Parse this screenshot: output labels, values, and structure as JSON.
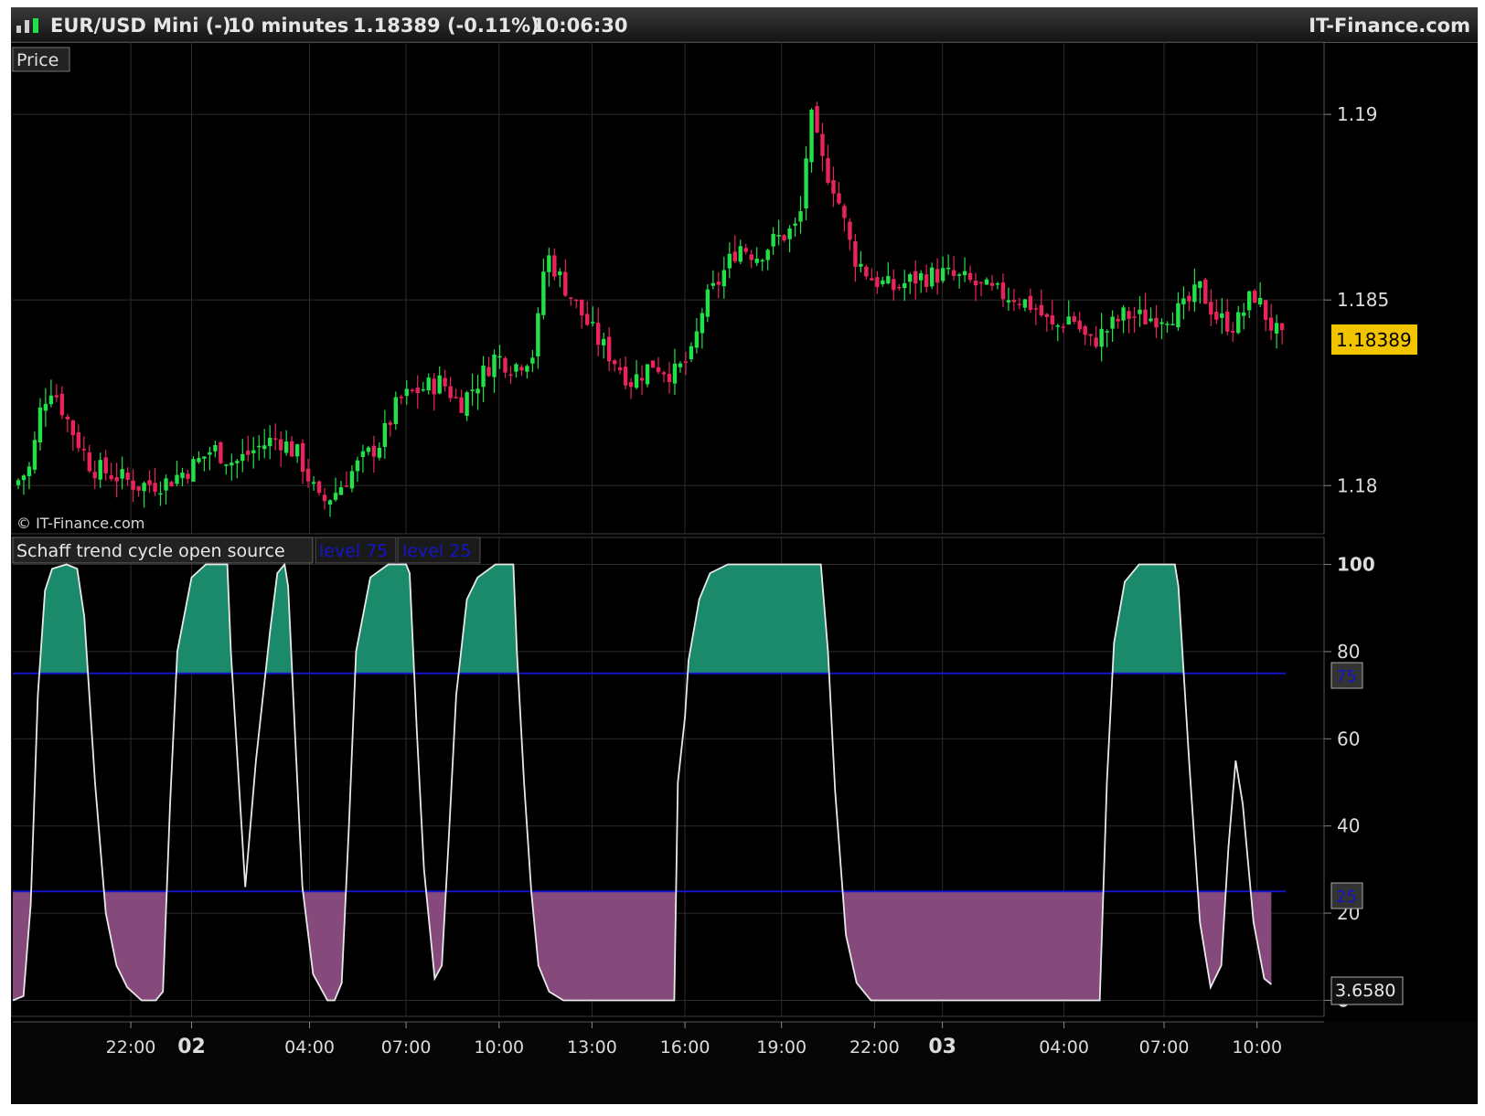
{
  "header": {
    "symbol": "EUR/USD Mini (-)",
    "timeframe": "10 minutes",
    "quote": "1.18389 (-0.11%)",
    "time": "10:06:30",
    "brand": "IT-Finance.com"
  },
  "price_panel": {
    "label": "Price",
    "watermark": "© IT-Finance.com",
    "last_price_badge": "1.18389"
  },
  "indicator_panel": {
    "label": "Schaff trend cycle open source",
    "level_tags": [
      "level 75",
      "level 25"
    ],
    "value_badge": "3.6580",
    "level75_badge": "75",
    "level25_badge": "25"
  },
  "colors": {
    "background": "#000000",
    "bull": "#22e04a",
    "bear": "#e8245a",
    "fill_high": "#1b8a6b",
    "fill_low": "#86497c",
    "level_line": "#1515c8",
    "stc_line": "#e8e8e8",
    "badge": "#f2c400"
  },
  "chart_data": [
    {
      "type": "candlestick",
      "title": "EUR/USD Mini (-) 10 minutes",
      "ylabel": "",
      "ylim": [
        1.1788,
        1.1918
      ],
      "y_ticks": [
        1.18,
        1.185,
        1.19
      ],
      "y_tick_labels": [
        "1.18",
        "1.185",
        "1.19"
      ],
      "last_price": 1.18389,
      "x_ticks": [
        "22:00",
        "02",
        "04:00",
        "07:00",
        "10:00",
        "13:00",
        "16:00",
        "19:00",
        "22:00",
        "03",
        "04:00",
        "07:00",
        "10:00"
      ],
      "close_path": [
        [
          0,
          1.18
        ],
        [
          0.5,
          1.1805
        ],
        [
          0.8,
          1.1822
        ],
        [
          1.1,
          1.1827
        ],
        [
          1.6,
          1.1816
        ],
        [
          2.2,
          1.1805
        ],
        [
          2.8,
          1.1803
        ],
        [
          3.5,
          1.18
        ],
        [
          4.3,
          1.1801
        ],
        [
          5.0,
          1.1805
        ],
        [
          5.6,
          1.181
        ],
        [
          6.2,
          1.1806
        ],
        [
          6.8,
          1.181
        ],
        [
          7.4,
          1.1813
        ],
        [
          8.0,
          1.1808
        ],
        [
          8.6,
          1.1795
        ],
        [
          9.0,
          1.1798
        ],
        [
          9.6,
          1.1805
        ],
        [
          10.3,
          1.1812
        ],
        [
          10.8,
          1.1823
        ],
        [
          11.4,
          1.1826
        ],
        [
          12.0,
          1.1828
        ],
        [
          12.5,
          1.1822
        ],
        [
          13.0,
          1.1828
        ],
        [
          13.5,
          1.1835
        ],
        [
          14.0,
          1.1832
        ],
        [
          14.6,
          1.1836
        ],
        [
          14.9,
          1.1863
        ],
        [
          15.3,
          1.1856
        ],
        [
          15.8,
          1.1848
        ],
        [
          16.3,
          1.184
        ],
        [
          16.8,
          1.1834
        ],
        [
          17.3,
          1.1828
        ],
        [
          17.9,
          1.1833
        ],
        [
          18.5,
          1.183
        ],
        [
          19.0,
          1.1835
        ],
        [
          19.3,
          1.1848
        ],
        [
          19.8,
          1.1856
        ],
        [
          20.3,
          1.1865
        ],
        [
          20.8,
          1.1862
        ],
        [
          21.3,
          1.1866
        ],
        [
          22.0,
          1.187
        ],
        [
          22.3,
          1.19
        ],
        [
          22.6,
          1.1888
        ],
        [
          23.0,
          1.188
        ],
        [
          23.5,
          1.1862
        ],
        [
          24.0,
          1.1856
        ],
        [
          24.6,
          1.1853
        ],
        [
          25.3,
          1.1856
        ],
        [
          26.0,
          1.1857
        ],
        [
          26.7,
          1.1855
        ],
        [
          27.4,
          1.1852
        ],
        [
          28.0,
          1.1851
        ],
        [
          28.6,
          1.1848
        ],
        [
          29.1,
          1.1842
        ],
        [
          29.6,
          1.1846
        ],
        [
          30.1,
          1.1838
        ],
        [
          30.6,
          1.1842
        ],
        [
          31.1,
          1.1846
        ],
        [
          31.7,
          1.1845
        ],
        [
          32.2,
          1.1846
        ],
        [
          32.7,
          1.1847
        ],
        [
          33.2,
          1.1853
        ],
        [
          33.7,
          1.1845
        ],
        [
          34.2,
          1.1843
        ],
        [
          34.7,
          1.1852
        ],
        [
          35.2,
          1.1843
        ],
        [
          35.5,
          1.1839
        ]
      ],
      "bull_color": "#22e04a",
      "bear_color": "#e8245a"
    },
    {
      "type": "area",
      "title": "Schaff trend cycle open source",
      "ylim": [
        -2,
        102
      ],
      "y_ticks": [
        0,
        20,
        40,
        60,
        80,
        100
      ],
      "y_tick_labels": [
        "0",
        "20",
        "40",
        "60",
        "80",
        "100"
      ],
      "levels": [
        {
          "name": "level 75",
          "value": 75
        },
        {
          "name": "level 25",
          "value": 25
        }
      ],
      "last_value": 3.658,
      "series": [
        {
          "name": "Schaff trend cycle open source",
          "points": [
            [
              0,
              0
            ],
            [
              0.3,
              1
            ],
            [
              0.5,
              22
            ],
            [
              0.7,
              70
            ],
            [
              0.9,
              94
            ],
            [
              1.1,
              99
            ],
            [
              1.5,
              100
            ],
            [
              1.8,
              99
            ],
            [
              2.0,
              88
            ],
            [
              2.3,
              50
            ],
            [
              2.6,
              20
            ],
            [
              2.9,
              8
            ],
            [
              3.2,
              3
            ],
            [
              3.6,
              0
            ],
            [
              4.0,
              0
            ],
            [
              4.2,
              2
            ],
            [
              4.4,
              45
            ],
            [
              4.6,
              80
            ],
            [
              5.0,
              97
            ],
            [
              5.4,
              100
            ],
            [
              6.0,
              100
            ],
            [
              6.1,
              80
            ],
            [
              6.5,
              26
            ],
            [
              6.8,
              55
            ],
            [
              7.2,
              85
            ],
            [
              7.4,
              98
            ],
            [
              7.6,
              100
            ],
            [
              7.7,
              95
            ],
            [
              7.9,
              60
            ],
            [
              8.1,
              26
            ],
            [
              8.4,
              6
            ],
            [
              8.8,
              0
            ],
            [
              9.0,
              0
            ],
            [
              9.2,
              4
            ],
            [
              9.4,
              40
            ],
            [
              9.6,
              80
            ],
            [
              10.0,
              97
            ],
            [
              10.5,
              100
            ],
            [
              11.0,
              100
            ],
            [
              11.1,
              98
            ],
            [
              11.3,
              62
            ],
            [
              11.5,
              30
            ],
            [
              11.8,
              5
            ],
            [
              12.0,
              8
            ],
            [
              12.2,
              38
            ],
            [
              12.4,
              70
            ],
            [
              12.7,
              92
            ],
            [
              13.0,
              97
            ],
            [
              13.5,
              100
            ],
            [
              14.0,
              100
            ],
            [
              14.1,
              80
            ],
            [
              14.3,
              50
            ],
            [
              14.5,
              25
            ],
            [
              14.7,
              8
            ],
            [
              15.0,
              2
            ],
            [
              15.4,
              0
            ],
            [
              18.5,
              0
            ],
            [
              18.6,
              50
            ],
            [
              18.8,
              65
            ],
            [
              18.9,
              78
            ],
            [
              19.2,
              92
            ],
            [
              19.5,
              98
            ],
            [
              20.0,
              100
            ],
            [
              22.6,
              100
            ],
            [
              22.8,
              80
            ],
            [
              23.0,
              48
            ],
            [
              23.3,
              15
            ],
            [
              23.6,
              4
            ],
            [
              24.0,
              0
            ],
            [
              30.4,
              0
            ],
            [
              30.6,
              50
            ],
            [
              30.8,
              82
            ],
            [
              31.1,
              96
            ],
            [
              31.5,
              100
            ],
            [
              32.5,
              100
            ],
            [
              32.6,
              95
            ],
            [
              32.9,
              55
            ],
            [
              33.2,
              18
            ],
            [
              33.5,
              3
            ],
            [
              33.8,
              8
            ],
            [
              34.0,
              35
            ],
            [
              34.2,
              55
            ],
            [
              34.4,
              45
            ],
            [
              34.7,
              18
            ],
            [
              35.0,
              5
            ],
            [
              35.2,
              3.658
            ]
          ]
        }
      ],
      "fill_high_color": "#1b8a6b",
      "fill_low_color": "#86497c"
    }
  ]
}
